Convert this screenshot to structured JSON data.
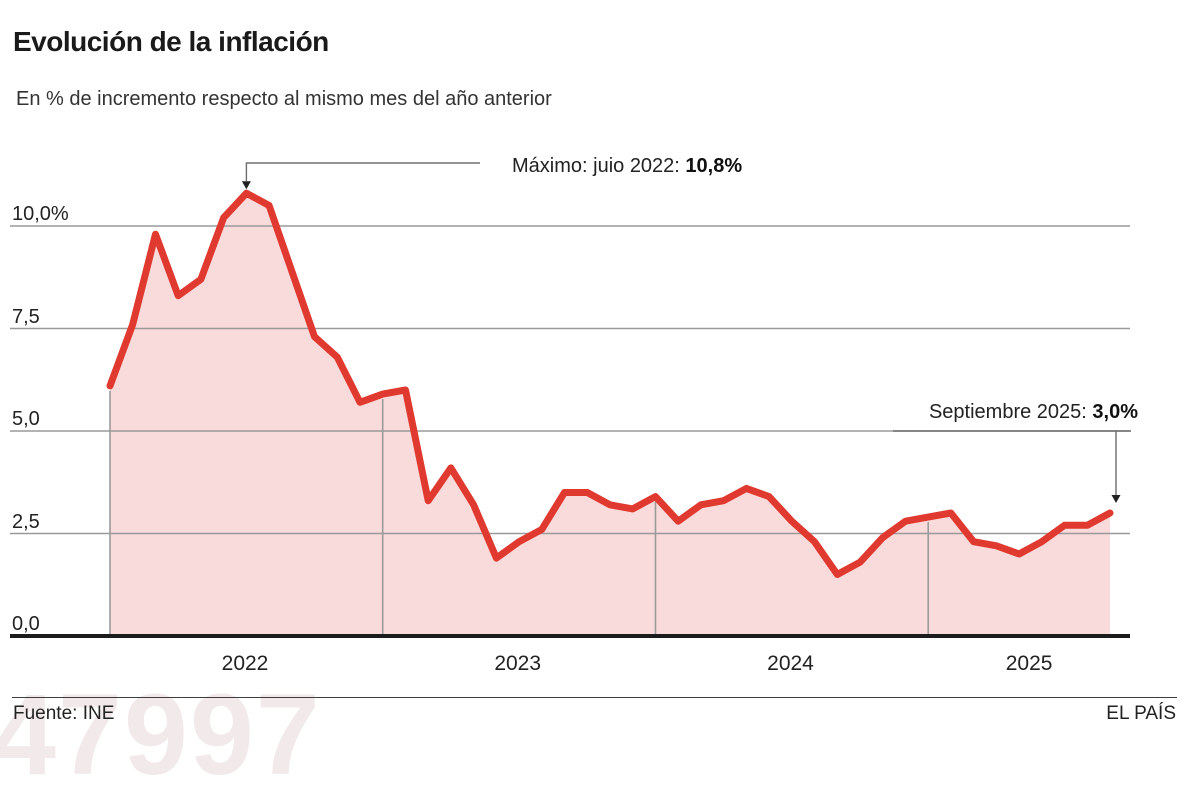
{
  "chart_data": {
    "type": "area",
    "title": "Evolución de la inflación",
    "subtitle": "En % de incremento respecto al mismo mes del año anterior",
    "unit": "%",
    "start_month": "enero 2022",
    "end_month": "septiembre 2025",
    "values": [
      6.1,
      7.6,
      9.8,
      8.3,
      8.7,
      10.2,
      10.8,
      10.5,
      8.9,
      7.3,
      6.8,
      5.7,
      5.9,
      6.0,
      3.3,
      4.1,
      3.2,
      1.9,
      2.3,
      2.6,
      3.5,
      3.5,
      3.2,
      3.1,
      3.4,
      2.8,
      3.2,
      3.3,
      3.6,
      3.4,
      2.8,
      2.3,
      1.5,
      1.8,
      2.4,
      2.8,
      2.9,
      3.0,
      2.3,
      2.2,
      2.0,
      2.3,
      2.7,
      2.7,
      3.0
    ],
    "year_labels": [
      "2022",
      "2023",
      "2024",
      "2025"
    ],
    "y_ticks": [
      {
        "v": 0,
        "label": "0,0"
      },
      {
        "v": 2.5,
        "label": "2,5"
      },
      {
        "v": 5,
        "label": "5,0"
      },
      {
        "v": 7.5,
        "label": "7,5"
      },
      {
        "v": 10,
        "label": "10,0%"
      }
    ],
    "ylim": [
      0,
      11.6
    ],
    "grid": true,
    "annotations": [
      {
        "name": "max",
        "prefix": "Máximo: juio 2022: ",
        "bold": "10,8%",
        "month_index": 6,
        "value": 10.8
      },
      {
        "name": "latest",
        "prefix": "Septiembre 2025: ",
        "bold": "3,0%",
        "month_index": 44,
        "value": 3.0
      }
    ],
    "colors": {
      "line": "#e0392f",
      "fill": "#fadbdb",
      "grid": "#9a9a9a",
      "axis": "#1c1c1c",
      "callout": "#6e6e6e",
      "arrow": "#222222"
    }
  },
  "footer": {
    "source": "Fuente: INE",
    "brand": "EL PAÍS"
  },
  "watermark": "47997"
}
